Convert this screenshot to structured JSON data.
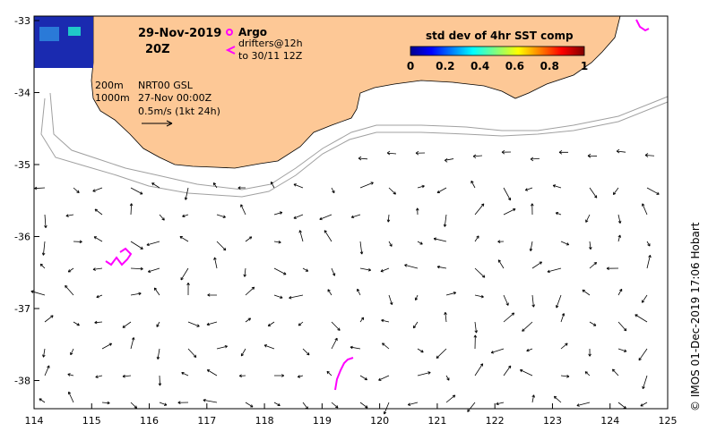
{
  "map": {
    "date": "29-Nov-2019",
    "time": "20Z",
    "legend": {
      "argo_label": "Argo",
      "drifters_label": "drifters@12h",
      "drifters_until": "to 30/11 12Z",
      "argo_color": "#ff00ff"
    },
    "annotations": {
      "isobath_200": "200m",
      "isobath_1000": "1000m",
      "model": "NRT00 GSL",
      "model_time": "27-Nov 00:00Z",
      "scale": "0.5m/s (1kt 24h)"
    },
    "colorbar": {
      "title": "std dev of 4hr SST comp",
      "ticks": [
        "0",
        "0.2",
        "0.4",
        "0.6",
        "0.8",
        "1"
      ]
    },
    "credit": "© IMOS 01-Dec-2019 17:06 Hobart",
    "x_ticks": [
      "114",
      "115",
      "116",
      "117",
      "118",
      "119",
      "120",
      "121",
      "122",
      "123",
      "124",
      "125"
    ],
    "y_ticks": [
      "-33",
      "-34",
      "-35",
      "-36",
      "-37",
      "-38"
    ],
    "colors": {
      "land": "#fdc896",
      "drifter": "#ff00ff",
      "isobath": "#a0a0a0"
    }
  }
}
